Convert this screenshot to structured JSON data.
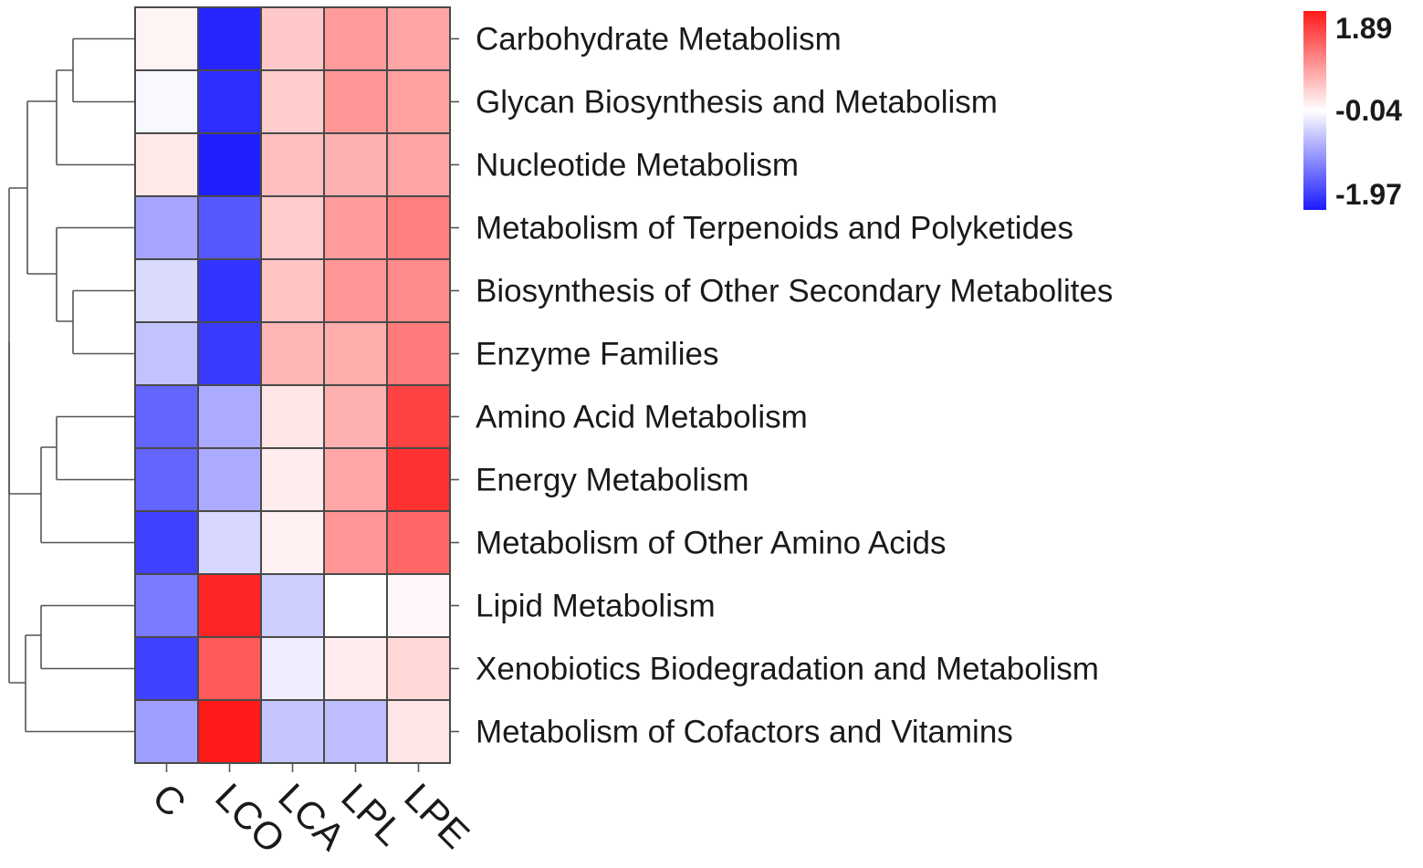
{
  "chart_data": {
    "type": "heatmap",
    "columns": [
      "C",
      "LCO",
      "LCA",
      "LPL",
      "LPE"
    ],
    "rows": [
      "Carbohydrate Metabolism",
      "Glycan Biosynthesis and Metabolism",
      "Nucleotide Metabolism",
      "Metabolism of Terpenoids and Polyketides",
      "Biosynthesis of Other Secondary Metabolites",
      "Enzyme Families",
      "Amino Acid Metabolism",
      "Energy Metabolism",
      "Metabolism of Other Amino Acids",
      "Lipid Metabolism",
      "Xenobiotics Biodegradation and Metabolism",
      "Metabolism of Cofactors and Vitamins"
    ],
    "values": [
      [
        0.05,
        -1.88,
        0.42,
        0.8,
        0.72
      ],
      [
        -0.1,
        -1.8,
        0.38,
        0.85,
        0.75
      ],
      [
        0.15,
        -1.92,
        0.5,
        0.62,
        0.72
      ],
      [
        -0.8,
        -1.45,
        0.4,
        0.8,
        1.05
      ],
      [
        -0.35,
        -1.75,
        0.45,
        0.85,
        0.95
      ],
      [
        -0.55,
        -1.7,
        0.58,
        0.65,
        1.08
      ],
      [
        -1.35,
        -0.75,
        0.18,
        0.62,
        1.55
      ],
      [
        -1.35,
        -0.75,
        0.12,
        0.7,
        1.7
      ],
      [
        -1.65,
        -0.38,
        0.08,
        0.85,
        1.25
      ],
      [
        -1.15,
        1.8,
        -0.45,
        -0.04,
        0.03
      ],
      [
        -1.65,
        1.35,
        -0.18,
        0.12,
        0.3
      ],
      [
        -0.85,
        1.89,
        -0.52,
        -0.6,
        0.18
      ]
    ],
    "scale": {
      "min": -1.97,
      "mid": -0.04,
      "max": 1.89
    },
    "scale_labels": [
      "1.89",
      "-0.04",
      "-1.97"
    ],
    "colors": {
      "low": "#1a1aff",
      "mid": "#ffffff",
      "high": "#ff1a1a"
    },
    "row_dendrogram": true,
    "legend": "top-right"
  }
}
